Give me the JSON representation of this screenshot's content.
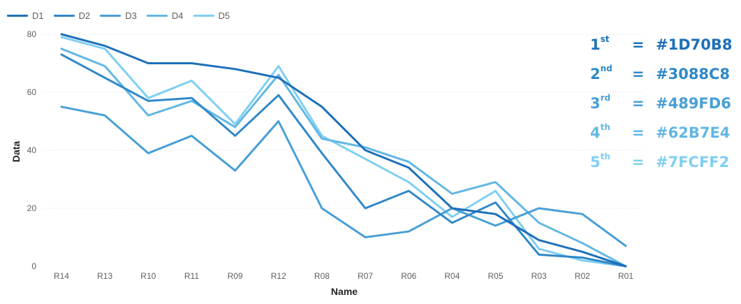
{
  "chart_data": {
    "type": "line",
    "xlabel": "Name",
    "ylabel": "Data",
    "ylim": [
      0,
      80
    ],
    "yticks": [
      0,
      20,
      40,
      60,
      80
    ],
    "grid": true,
    "legend_position": "top-left",
    "categories": [
      "R14",
      "R13",
      "R10",
      "R11",
      "R09",
      "R12",
      "R08",
      "R07",
      "R06",
      "R04",
      "R05",
      "R03",
      "R02",
      "R01"
    ],
    "series": [
      {
        "name": "D1",
        "color": "#1D70B8",
        "values": [
          80,
          76,
          70,
          70,
          68,
          65,
          55,
          40,
          34,
          20,
          18,
          9,
          5,
          0
        ]
      },
      {
        "name": "D2",
        "color": "#3088C8",
        "values": [
          73,
          65,
          57,
          58,
          45,
          59,
          39,
          20,
          26,
          15,
          22,
          4,
          3,
          0
        ]
      },
      {
        "name": "D3",
        "color": "#489FD6",
        "values": [
          55,
          52,
          39,
          45,
          33,
          50,
          20,
          10,
          12,
          20,
          14,
          20,
          18,
          7
        ]
      },
      {
        "name": "D4",
        "color": "#62B7E4",
        "values": [
          75,
          69,
          52,
          57,
          48,
          66,
          44,
          41,
          36,
          25,
          29,
          15,
          8,
          0
        ]
      },
      {
        "name": "D5",
        "color": "#7FCFF2",
        "values": [
          79,
          75,
          58,
          64,
          49,
          69,
          45,
          37,
          29,
          17,
          26,
          6,
          2,
          0
        ]
      }
    ]
  },
  "color_key": [
    {
      "rank": "1",
      "suffix": "st",
      "eq": "=",
      "hex": "#1D70B8",
      "color": "#1D70B8"
    },
    {
      "rank": "2",
      "suffix": "nd",
      "eq": "=",
      "hex": "#3088C8",
      "color": "#3088C8"
    },
    {
      "rank": "3",
      "suffix": "rd",
      "eq": "=",
      "hex": "#489FD6",
      "color": "#489FD6"
    },
    {
      "rank": "4",
      "suffix": "th",
      "eq": "=",
      "hex": "#62B7E4",
      "color": "#62B7E4"
    },
    {
      "rank": "5",
      "suffix": "th",
      "eq": "=",
      "hex": "#7FCFF2",
      "color": "#7FCFF2"
    }
  ]
}
